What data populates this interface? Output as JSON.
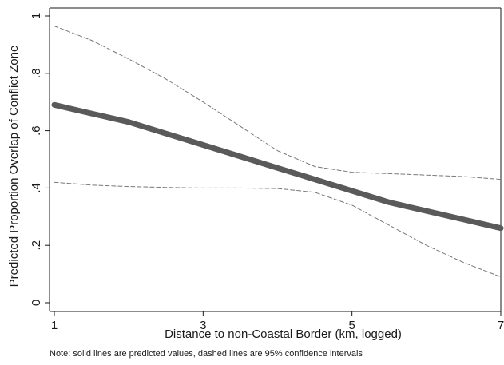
{
  "chart_data": {
    "type": "line",
    "title": "",
    "xlabel": "Distance to non-Coastal Border (km, logged)",
    "ylabel": "Predicted Proportion Overlap of Conflict Zone",
    "note": "Note: solid lines are predicted values, dashed lines are 95% confidence intervals",
    "xlim": [
      1,
      7
    ],
    "ylim": [
      0,
      1
    ],
    "x_ticks": [
      1,
      3,
      5,
      7
    ],
    "x_tick_labels": [
      "1",
      "3",
      "5",
      "7"
    ],
    "y_ticks": [
      0,
      0.2,
      0.4,
      0.6,
      0.8,
      1
    ],
    "y_tick_labels": [
      "0",
      ".2",
      ".4",
      ".6",
      ".8",
      "1"
    ],
    "grid": false,
    "legend": "none",
    "series": [
      {
        "role": "predicted",
        "style": "solid",
        "color": "#5a5a5a",
        "x": [
          1,
          1.5,
          2,
          2.5,
          3,
          3.5,
          4,
          4.5,
          5,
          5.5,
          6,
          6.5,
          7
        ],
        "y": [
          0.69,
          0.66,
          0.63,
          0.59,
          0.55,
          0.51,
          0.47,
          0.43,
          0.39,
          0.35,
          0.32,
          0.29,
          0.26
        ]
      },
      {
        "role": "upper-ci",
        "style": "dashed",
        "color": "#777777",
        "x": [
          1,
          1.5,
          2,
          2.5,
          3,
          3.5,
          4,
          4.5,
          5,
          5.5,
          6,
          6.5,
          7
        ],
        "y": [
          0.965,
          0.915,
          0.85,
          0.78,
          0.7,
          0.615,
          0.53,
          0.475,
          0.455,
          0.45,
          0.445,
          0.44,
          0.43
        ]
      },
      {
        "role": "lower-ci",
        "style": "dashed",
        "color": "#777777",
        "x": [
          1,
          1.5,
          2,
          2.5,
          3,
          3.5,
          4,
          4.5,
          5,
          5.5,
          6,
          6.5,
          7
        ],
        "y": [
          0.42,
          0.41,
          0.405,
          0.402,
          0.4,
          0.4,
          0.398,
          0.385,
          0.34,
          0.27,
          0.2,
          0.14,
          0.09
        ]
      }
    ]
  }
}
